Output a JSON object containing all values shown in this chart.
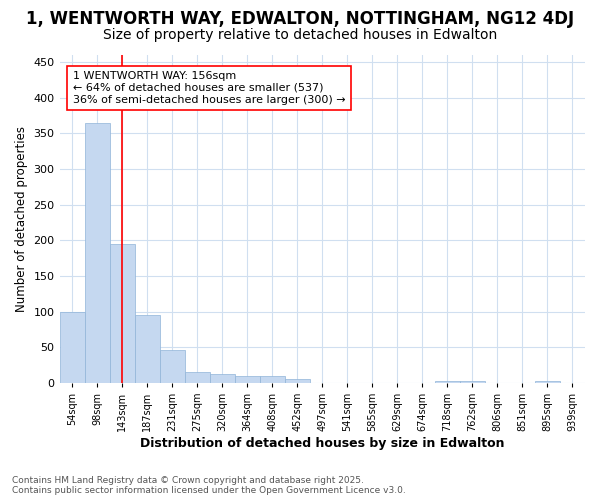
{
  "title": "1, WENTWORTH WAY, EDWALTON, NOTTINGHAM, NG12 4DJ",
  "subtitle": "Size of property relative to detached houses in Edwalton",
  "xlabel": "Distribution of detached houses by size in Edwalton",
  "ylabel": "Number of detached properties",
  "categories": [
    "54sqm",
    "98sqm",
    "143sqm",
    "187sqm",
    "231sqm",
    "275sqm",
    "320sqm",
    "364sqm",
    "408sqm",
    "452sqm",
    "497sqm",
    "541sqm",
    "585sqm",
    "629sqm",
    "674sqm",
    "718sqm",
    "762sqm",
    "806sqm",
    "851sqm",
    "895sqm",
    "939sqm"
  ],
  "values": [
    100,
    365,
    195,
    95,
    46,
    15,
    12,
    10,
    10,
    5,
    0,
    0,
    0,
    0,
    0,
    3,
    3,
    0,
    0,
    3,
    0
  ],
  "bar_color": "#c5d8f0",
  "bar_edgecolor": "#90b4d8",
  "red_line_x": 2.0,
  "annotation_line1": "1 WENTWORTH WAY: 156sqm",
  "annotation_line2": "← 64% of detached houses are smaller (537)",
  "annotation_line3": "36% of semi-detached houses are larger (300) →",
  "ylim": [
    0,
    460
  ],
  "yticks": [
    0,
    50,
    100,
    150,
    200,
    250,
    300,
    350,
    400,
    450
  ],
  "footnote": "Contains HM Land Registry data © Crown copyright and database right 2025.\nContains public sector information licensed under the Open Government Licence v3.0.",
  "background_color": "#ffffff",
  "grid_color": "#d0dff0",
  "title_fontsize": 12,
  "subtitle_fontsize": 10
}
